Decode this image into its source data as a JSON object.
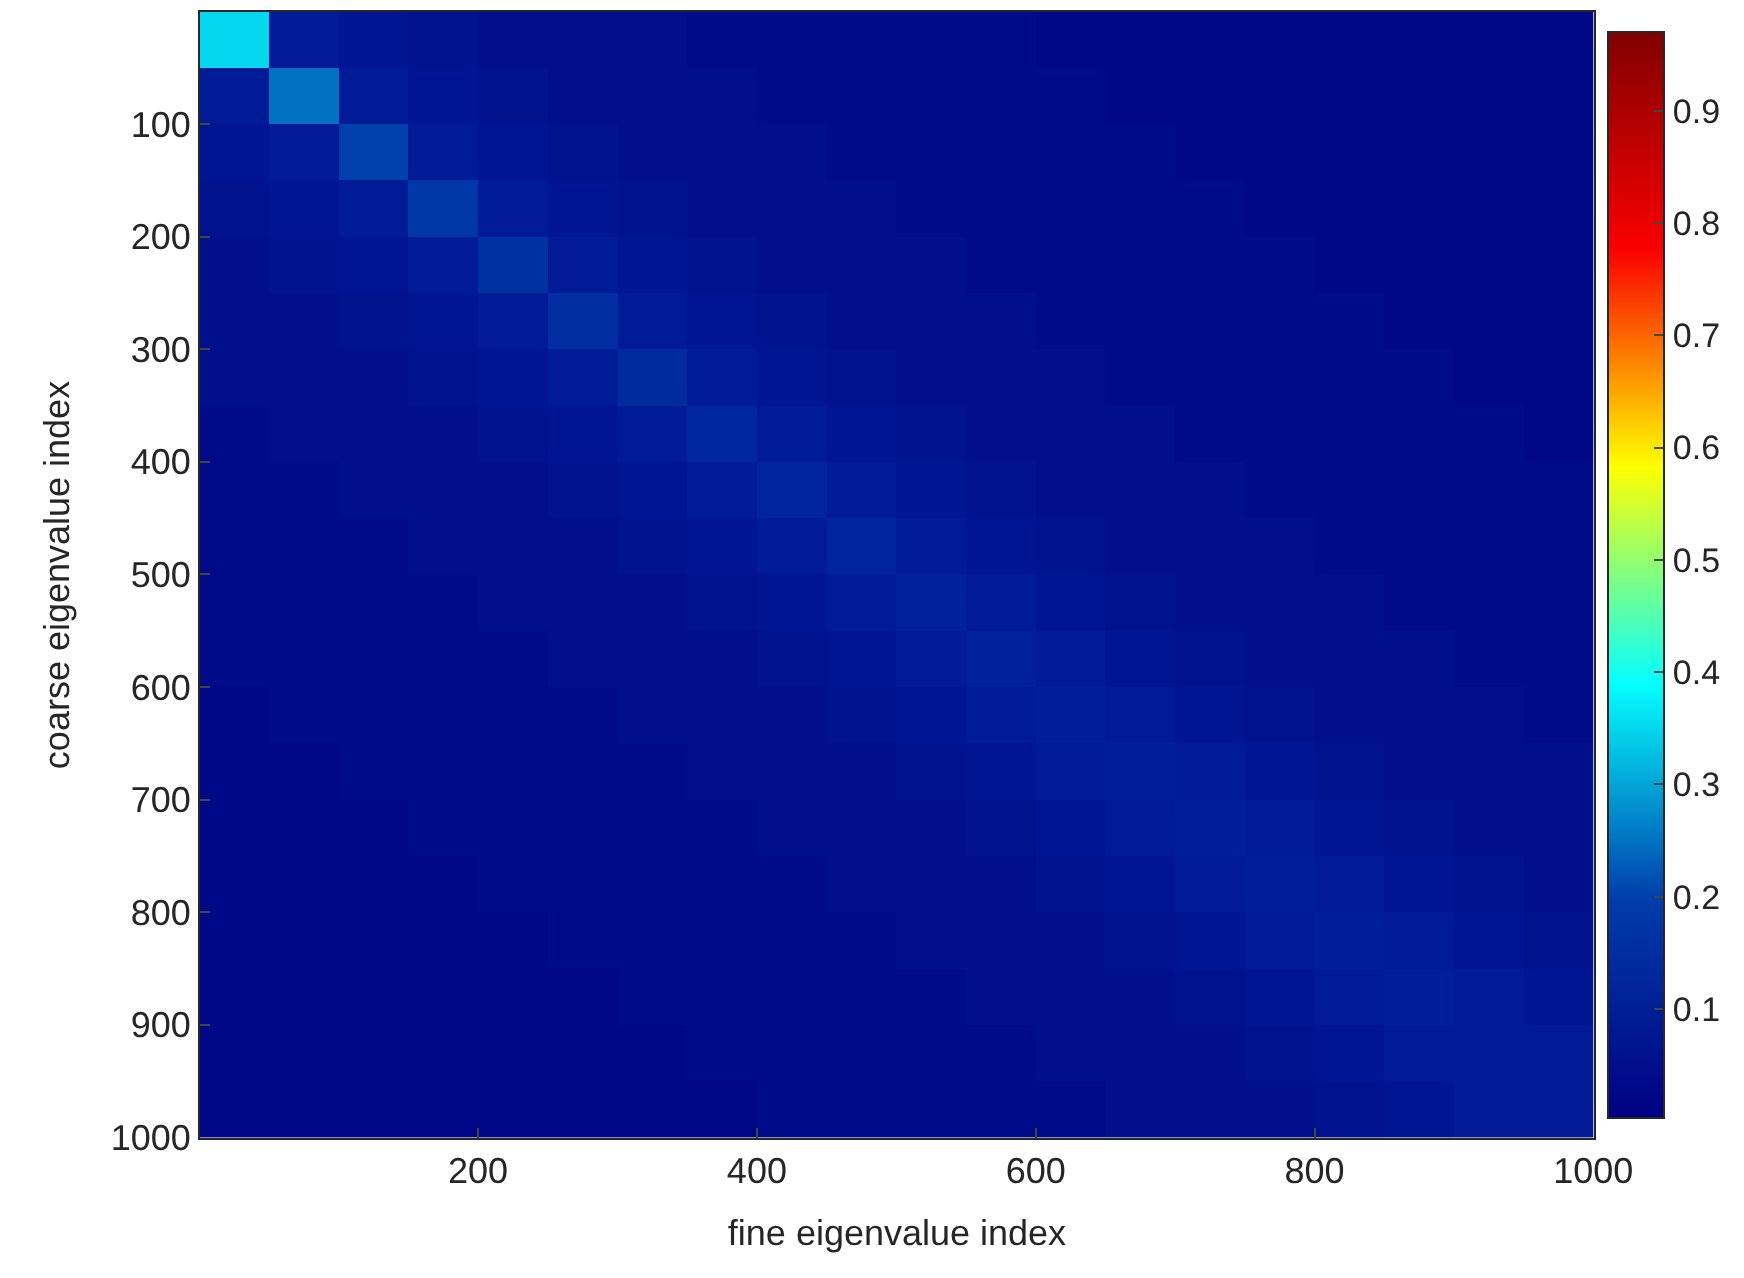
{
  "chart_data": {
    "type": "heatmap",
    "xlabel": "fine eigenvalue index",
    "ylabel": "coarse eigenvalue index",
    "x": [
      25,
      75,
      125,
      175,
      225,
      275,
      325,
      375,
      425,
      475,
      525,
      575,
      625,
      675,
      725,
      775,
      825,
      875,
      925,
      975
    ],
    "y": [
      25,
      75,
      125,
      175,
      225,
      275,
      325,
      375,
      425,
      475,
      525,
      575,
      625,
      675,
      725,
      775,
      825,
      875,
      925,
      975
    ],
    "xlim": [
      0.5,
      1000.5
    ],
    "xticks": [
      200,
      400,
      600,
      800,
      1000
    ],
    "ylim": [
      1000.5,
      0.5
    ],
    "yticks": [
      100,
      200,
      300,
      400,
      500,
      600,
      700,
      800,
      900,
      1000
    ],
    "clim": [
      0.003,
      0.97
    ],
    "cticks": [
      0.1,
      0.2,
      0.3,
      0.4,
      0.5,
      0.6,
      0.7,
      0.8,
      0.9
    ],
    "cells": [
      [
        0.35,
        0.09,
        0.07,
        0.06,
        0.05,
        0.05,
        0.05,
        0.04,
        0.04,
        0.04,
        0.04,
        0.04,
        0.03,
        0.03,
        0.03,
        0.03,
        0.03,
        0.03,
        0.03,
        0.03
      ],
      [
        0.09,
        0.25,
        0.09,
        0.07,
        0.06,
        0.05,
        0.05,
        0.05,
        0.04,
        0.04,
        0.04,
        0.04,
        0.04,
        0.03,
        0.03,
        0.03,
        0.03,
        0.03,
        0.03,
        0.03
      ],
      [
        0.07,
        0.09,
        0.2,
        0.09,
        0.07,
        0.06,
        0.05,
        0.05,
        0.05,
        0.04,
        0.04,
        0.04,
        0.04,
        0.04,
        0.03,
        0.03,
        0.03,
        0.03,
        0.03,
        0.03
      ],
      [
        0.06,
        0.07,
        0.09,
        0.18,
        0.09,
        0.07,
        0.06,
        0.05,
        0.05,
        0.05,
        0.04,
        0.04,
        0.04,
        0.04,
        0.04,
        0.03,
        0.03,
        0.03,
        0.03,
        0.03
      ],
      [
        0.05,
        0.06,
        0.07,
        0.09,
        0.16,
        0.09,
        0.07,
        0.06,
        0.05,
        0.05,
        0.05,
        0.04,
        0.04,
        0.04,
        0.04,
        0.04,
        0.03,
        0.03,
        0.03,
        0.03
      ],
      [
        0.05,
        0.05,
        0.06,
        0.07,
        0.09,
        0.15,
        0.09,
        0.07,
        0.06,
        0.05,
        0.05,
        0.05,
        0.04,
        0.04,
        0.04,
        0.04,
        0.04,
        0.03,
        0.03,
        0.03
      ],
      [
        0.05,
        0.05,
        0.05,
        0.06,
        0.07,
        0.09,
        0.14,
        0.09,
        0.07,
        0.06,
        0.05,
        0.05,
        0.05,
        0.04,
        0.04,
        0.04,
        0.04,
        0.04,
        0.03,
        0.03
      ],
      [
        0.04,
        0.05,
        0.05,
        0.05,
        0.06,
        0.07,
        0.09,
        0.13,
        0.09,
        0.07,
        0.06,
        0.05,
        0.05,
        0.05,
        0.04,
        0.04,
        0.04,
        0.04,
        0.04,
        0.03
      ],
      [
        0.04,
        0.04,
        0.05,
        0.05,
        0.05,
        0.06,
        0.07,
        0.09,
        0.12,
        0.09,
        0.07,
        0.06,
        0.05,
        0.05,
        0.05,
        0.04,
        0.04,
        0.04,
        0.04,
        0.04
      ],
      [
        0.04,
        0.04,
        0.04,
        0.05,
        0.05,
        0.05,
        0.06,
        0.07,
        0.09,
        0.12,
        0.09,
        0.07,
        0.06,
        0.05,
        0.05,
        0.05,
        0.04,
        0.04,
        0.04,
        0.04
      ],
      [
        0.04,
        0.04,
        0.04,
        0.04,
        0.05,
        0.05,
        0.05,
        0.06,
        0.07,
        0.09,
        0.11,
        0.09,
        0.07,
        0.06,
        0.05,
        0.05,
        0.05,
        0.04,
        0.04,
        0.04
      ],
      [
        0.04,
        0.04,
        0.04,
        0.04,
        0.04,
        0.05,
        0.05,
        0.05,
        0.06,
        0.07,
        0.09,
        0.11,
        0.09,
        0.07,
        0.06,
        0.05,
        0.05,
        0.05,
        0.04,
        0.04
      ],
      [
        0.03,
        0.04,
        0.04,
        0.04,
        0.04,
        0.04,
        0.05,
        0.05,
        0.05,
        0.06,
        0.07,
        0.09,
        0.1,
        0.09,
        0.07,
        0.06,
        0.05,
        0.05,
        0.05,
        0.04
      ],
      [
        0.03,
        0.03,
        0.04,
        0.04,
        0.04,
        0.04,
        0.04,
        0.05,
        0.05,
        0.05,
        0.06,
        0.07,
        0.09,
        0.1,
        0.09,
        0.07,
        0.06,
        0.05,
        0.05,
        0.05
      ],
      [
        0.03,
        0.03,
        0.03,
        0.04,
        0.04,
        0.04,
        0.04,
        0.04,
        0.05,
        0.05,
        0.05,
        0.06,
        0.07,
        0.09,
        0.1,
        0.09,
        0.07,
        0.06,
        0.05,
        0.05
      ],
      [
        0.03,
        0.03,
        0.03,
        0.03,
        0.04,
        0.04,
        0.04,
        0.04,
        0.04,
        0.05,
        0.05,
        0.05,
        0.06,
        0.07,
        0.09,
        0.1,
        0.09,
        0.07,
        0.06,
        0.05
      ],
      [
        0.03,
        0.03,
        0.03,
        0.03,
        0.03,
        0.04,
        0.04,
        0.04,
        0.04,
        0.04,
        0.05,
        0.05,
        0.05,
        0.06,
        0.07,
        0.09,
        0.1,
        0.09,
        0.07,
        0.06
      ],
      [
        0.03,
        0.03,
        0.03,
        0.03,
        0.03,
        0.03,
        0.04,
        0.04,
        0.04,
        0.04,
        0.04,
        0.05,
        0.05,
        0.05,
        0.06,
        0.07,
        0.09,
        0.1,
        0.09,
        0.07
      ],
      [
        0.03,
        0.03,
        0.03,
        0.03,
        0.03,
        0.03,
        0.03,
        0.04,
        0.04,
        0.04,
        0.04,
        0.04,
        0.05,
        0.05,
        0.05,
        0.06,
        0.07,
        0.09,
        0.09,
        0.09
      ],
      [
        0.03,
        0.03,
        0.03,
        0.03,
        0.03,
        0.03,
        0.03,
        0.03,
        0.04,
        0.04,
        0.04,
        0.04,
        0.04,
        0.05,
        0.05,
        0.05,
        0.06,
        0.07,
        0.09,
        0.09
      ]
    ]
  }
}
